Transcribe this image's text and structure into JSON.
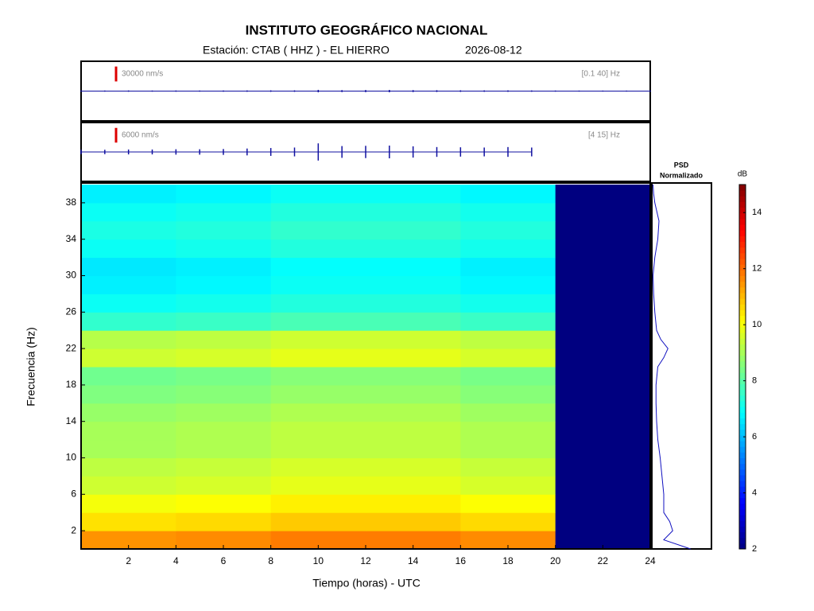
{
  "chart_data": {
    "type": "spectrogram",
    "title": "INSTITUTO GEOGRÁFICO NACIONAL",
    "station": "Estación:  CTAB ( HHZ ) - EL HIERRO",
    "date": "2026-08-12",
    "x_label": "Tiempo (horas) - UTC",
    "y_label": "Frecuencia  (Hz)",
    "xlim": [
      0,
      24
    ],
    "xticks": [
      2,
      4,
      6,
      8,
      10,
      12,
      14,
      16,
      18,
      20,
      22,
      24
    ],
    "ylim": [
      0,
      40
    ],
    "yticks": [
      2,
      6,
      10,
      14,
      18,
      22,
      26,
      30,
      34,
      38
    ],
    "time_bins": [
      0,
      4,
      8,
      12,
      16,
      20,
      24
    ],
    "freq_bins": [
      0,
      2,
      4,
      6,
      8,
      10,
      12,
      14,
      16,
      18,
      20,
      22,
      24,
      26,
      28,
      30,
      32,
      34,
      36,
      38,
      40
    ],
    "values": [
      [
        11.5,
        11.6,
        11.8,
        11.8,
        11.6,
        2
      ],
      [
        10.5,
        10.6,
        10.8,
        10.8,
        10.6,
        2
      ],
      [
        10,
        10.1,
        10.3,
        10.3,
        10.1,
        2
      ],
      [
        9.5,
        9.6,
        9.8,
        9.8,
        9.6,
        2
      ],
      [
        9.3,
        9.4,
        9.6,
        9.6,
        9.4,
        2
      ],
      [
        9,
        9.1,
        9.3,
        9.3,
        9.1,
        2
      ],
      [
        9,
        9.1,
        9.3,
        9.3,
        9.1,
        2
      ],
      [
        8.8,
        8.9,
        9.1,
        9.1,
        8.9,
        2
      ],
      [
        8.5,
        8.6,
        8.8,
        8.8,
        8.6,
        2
      ],
      [
        8.3,
        8.4,
        8.6,
        8.6,
        8.4,
        2
      ],
      [
        9.5,
        9.6,
        9.8,
        9.8,
        9.6,
        2
      ],
      [
        9.2,
        9.3,
        9.5,
        9.5,
        9.3,
        2
      ],
      [
        7.5,
        7.6,
        7.8,
        7.8,
        7.6,
        2
      ],
      [
        7,
        7.1,
        7.3,
        7.3,
        7.1,
        2
      ],
      [
        6.7,
        6.8,
        7,
        7,
        6.8,
        2
      ],
      [
        6.6,
        6.7,
        6.9,
        6.9,
        6.7,
        2
      ],
      [
        7,
        7.1,
        7.3,
        7.3,
        7.1,
        2
      ],
      [
        7.2,
        7.3,
        7.5,
        7.5,
        7.3,
        2
      ],
      [
        7,
        7.1,
        7.3,
        7.3,
        7.1,
        2
      ],
      [
        6.7,
        6.8,
        7,
        7,
        6.8,
        2
      ]
    ],
    "colorbar": {
      "label": "dB",
      "lim": [
        2,
        15
      ],
      "ticks": [
        2,
        4,
        6,
        8,
        10,
        12,
        14
      ]
    },
    "psd": {
      "title": [
        "PSD",
        "Normalizado"
      ],
      "color": "#1010c0",
      "xlim": [
        0,
        1
      ],
      "frequencies": [
        0,
        1,
        2,
        3,
        4,
        6,
        8,
        10,
        12,
        14,
        16,
        18,
        20,
        21,
        22,
        23,
        24,
        26,
        28,
        30,
        32,
        34,
        36,
        38,
        39,
        40
      ],
      "values": [
        0.65,
        0.2,
        0.35,
        0.3,
        0.2,
        0.2,
        0.17,
        0.14,
        0.1,
        0.08,
        0.07,
        0.07,
        0.1,
        0.2,
        0.27,
        0.15,
        0.08,
        0.05,
        0.03,
        0.02,
        0.05,
        0.1,
        0.12,
        0.05,
        0.03,
        0.02
      ]
    },
    "traces": [
      {
        "scale": 30000,
        "scale_label": "30000 nm/s",
        "band": "[0.1 40] Hz",
        "color": "#1010a0",
        "ylim": [
          -60000,
          60000
        ],
        "x": [
          0,
          1,
          2,
          3,
          4,
          5,
          6,
          7,
          8,
          9,
          10,
          11,
          12,
          13,
          14,
          15,
          16,
          17,
          18,
          19,
          20,
          21,
          22,
          23,
          24
        ],
        "values": [
          1200,
          1200,
          1300,
          1200,
          1300,
          1200,
          1300,
          1400,
          1500,
          1500,
          2500,
          2000,
          2200,
          2400,
          2000,
          1800,
          1600,
          1500,
          1500,
          1400,
          1200,
          1100,
          1100,
          1100,
          1100
        ]
      },
      {
        "scale": 6000,
        "scale_label": "6000 nm/s",
        "band": "[4 15] Hz",
        "color": "#1010a0",
        "ylim": [
          -12000,
          12000
        ],
        "x": [
          0,
          1,
          2,
          3,
          4,
          5,
          6,
          7,
          8,
          9,
          10,
          11,
          12,
          13,
          14,
          15,
          16,
          17,
          18,
          19,
          20,
          21,
          22,
          23,
          24
        ],
        "values": [
          900,
          900,
          1000,
          1000,
          1100,
          1100,
          1200,
          1400,
          1600,
          1800,
          3500,
          2400,
          2500,
          2600,
          2300,
          2000,
          1900,
          1800,
          2000,
          1800,
          null,
          null,
          null,
          null,
          null
        ]
      }
    ]
  }
}
